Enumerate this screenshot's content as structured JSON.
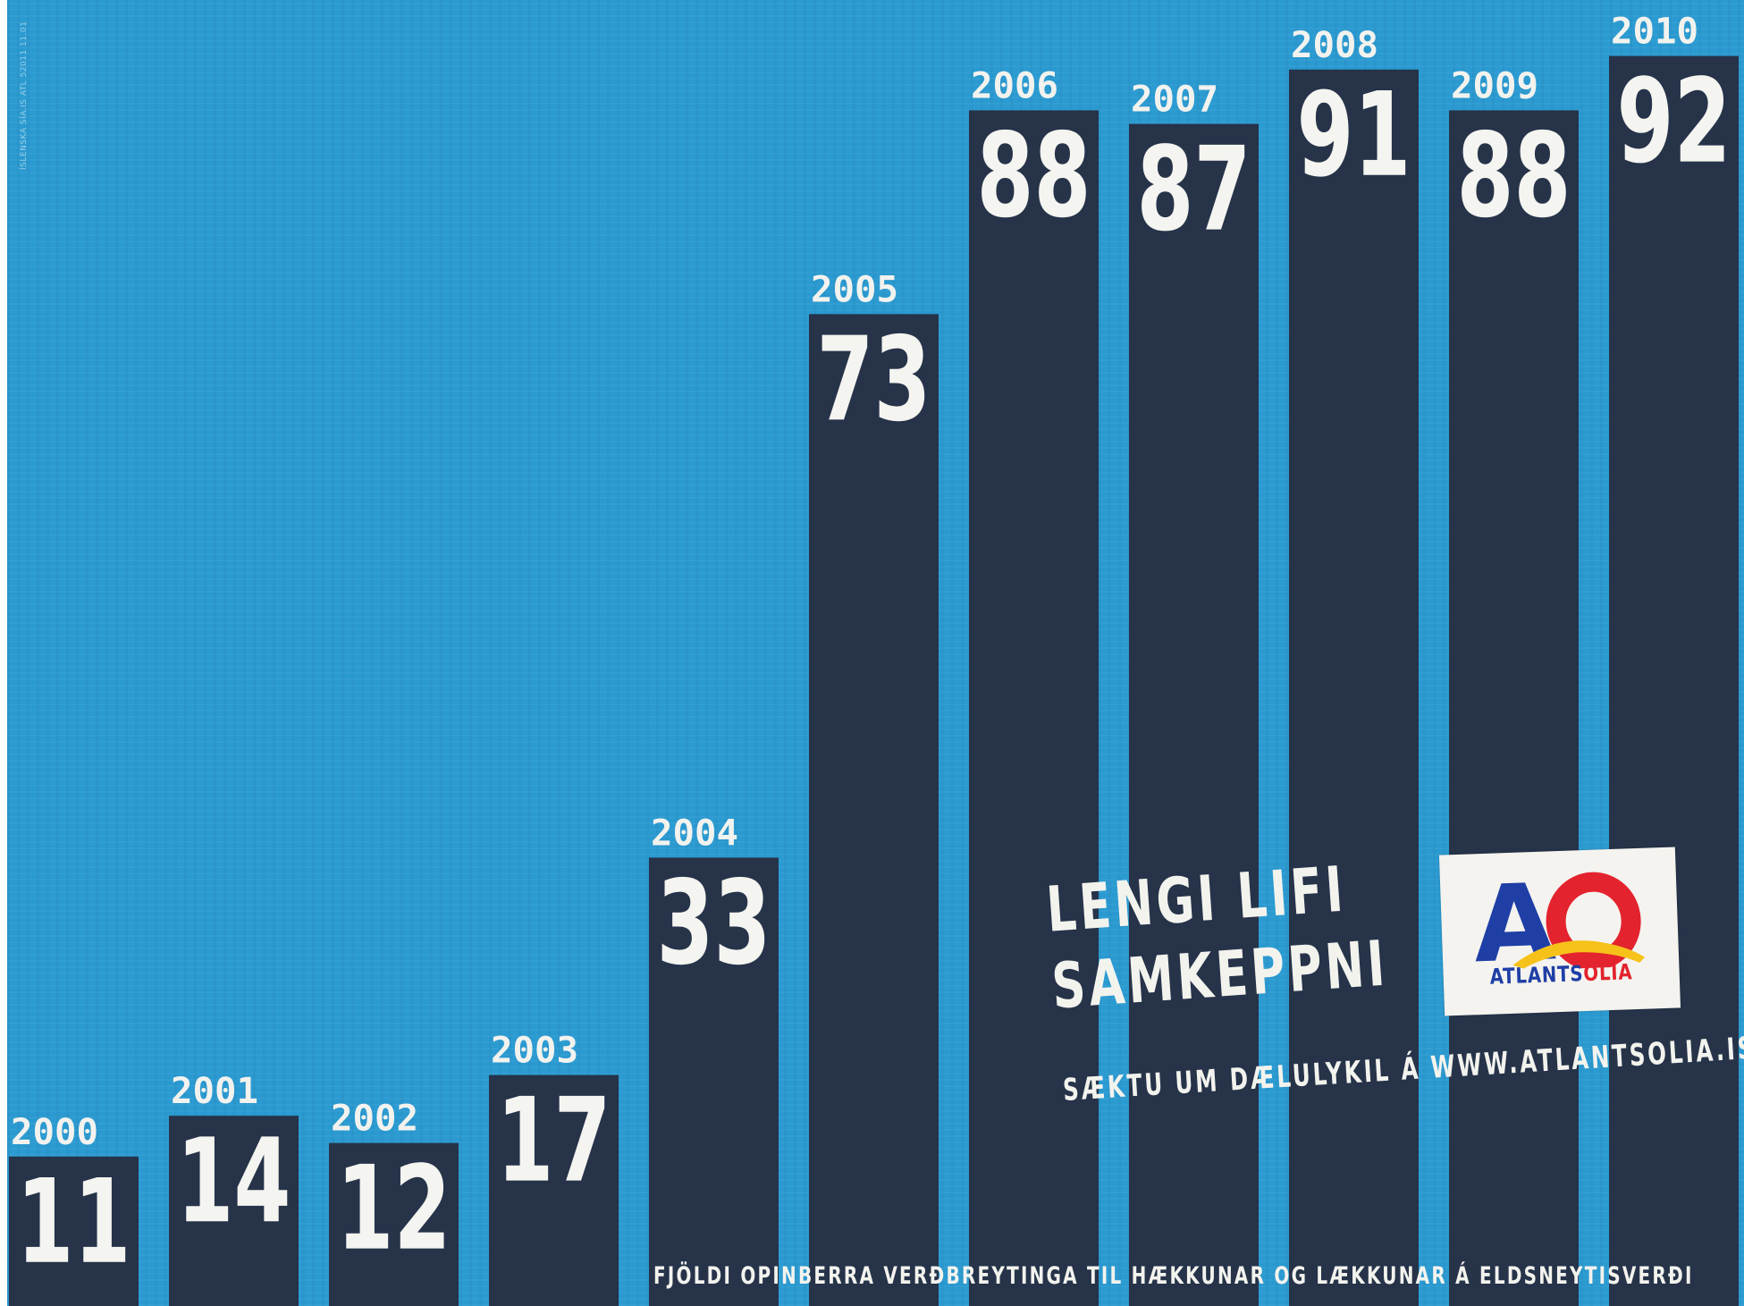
{
  "colors": {
    "background": "#2a9ad1",
    "bar": "#263349",
    "text": "#f3f3ee",
    "logo_blue": "#1f3fa6",
    "logo_red": "#e3232e",
    "logo_yellow": "#f6c21a"
  },
  "side_code": "ÍSLENSKA SÍA.IS ATL 52011 11.01",
  "chart_data": {
    "type": "bar",
    "title": "FJÖLDI OPINBERRA VERÐBREYTINGA TIL HÆKKUNAR OG LÆKKUNAR Á ELDSNEYTISVERÐI",
    "categories": [
      "2000",
      "2001",
      "2002",
      "2003",
      "2004",
      "2005",
      "2006",
      "2007",
      "2008",
      "2009",
      "2010"
    ],
    "values": [
      11,
      14,
      12,
      17,
      33,
      73,
      88,
      87,
      91,
      88,
      92
    ],
    "data_labels": [
      "11",
      "14",
      "12",
      "17",
      "33",
      "73",
      "88",
      "87",
      "91",
      "88",
      "92"
    ],
    "xlabel": "",
    "ylabel": "",
    "ylim": [
      0,
      100
    ],
    "grid": false,
    "legend": "none"
  },
  "slogan": {
    "line1": "LENGI LIFI",
    "line2": "SAMKEPPNI"
  },
  "cta": "SÆKTU UM DÆLULYKIL Á WWW.ATLANTSOLIA.IS",
  "logo": {
    "letters": "AO",
    "name_part1": "ATLANTS",
    "name_part2": "OLÍA"
  },
  "footnote": "FJÖLDI OPINBERRA VERÐBREYTINGA TIL HÆKKUNAR OG LÆKKUNAR Á ELDSNEYTISVERÐI"
}
